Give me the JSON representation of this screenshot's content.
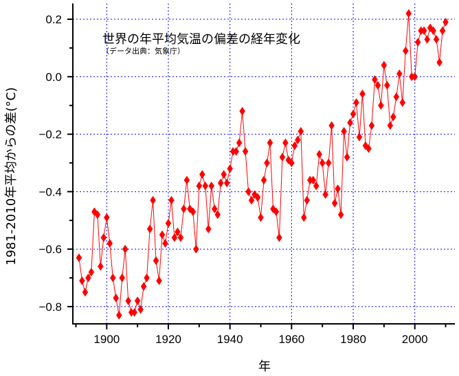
{
  "chart_data": {
    "type": "line",
    "title": "世界の年平均気温の偏差の経年変化",
    "subtitle": "（データ出典：気象庁）",
    "xlabel": "年",
    "ylabel": "1981-2010年平均からの差(°C)",
    "xlim": [
      1889,
      2013
    ],
    "ylim": [
      -0.86,
      0.255
    ],
    "x_ticks": [
      1900,
      1920,
      1940,
      1960,
      1980,
      2000
    ],
    "x_tick_labels": [
      "1900",
      "1920",
      "1940",
      "1960",
      "1980",
      "2000"
    ],
    "y_ticks": [
      -0.8,
      -0.6,
      -0.4,
      -0.2,
      0.0,
      0.2
    ],
    "y_tick_labels": [
      "−0.8",
      "−0.6",
      "−0.4",
      "−0.2",
      "0.0",
      "0.2"
    ],
    "grid": true,
    "color": "#ff0000",
    "marker": "diamond",
    "x": [
      1891,
      1892,
      1893,
      1894,
      1895,
      1896,
      1897,
      1898,
      1899,
      1900,
      1901,
      1902,
      1903,
      1904,
      1905,
      1906,
      1907,
      1908,
      1909,
      1910,
      1911,
      1912,
      1913,
      1914,
      1915,
      1916,
      1917,
      1918,
      1919,
      1920,
      1921,
      1922,
      1923,
      1924,
      1925,
      1926,
      1927,
      1928,
      1929,
      1930,
      1931,
      1932,
      1933,
      1934,
      1935,
      1936,
      1937,
      1938,
      1939,
      1940,
      1941,
      1942,
      1943,
      1944,
      1945,
      1946,
      1947,
      1948,
      1949,
      1950,
      1951,
      1952,
      1953,
      1954,
      1955,
      1956,
      1957,
      1958,
      1959,
      1960,
      1961,
      1962,
      1963,
      1964,
      1965,
      1966,
      1967,
      1968,
      1969,
      1970,
      1971,
      1972,
      1973,
      1974,
      1975,
      1976,
      1977,
      1978,
      1979,
      1980,
      1981,
      1982,
      1983,
      1984,
      1985,
      1986,
      1987,
      1988,
      1989,
      1990,
      1991,
      1992,
      1993,
      1994,
      1995,
      1996,
      1997,
      1998,
      1999,
      2000,
      2001,
      2002,
      2003,
      2004,
      2005,
      2006,
      2007,
      2008,
      2009,
      2010
    ],
    "values": [
      -0.63,
      -0.71,
      -0.75,
      -0.7,
      -0.68,
      -0.47,
      -0.48,
      -0.66,
      -0.56,
      -0.49,
      -0.58,
      -0.7,
      -0.77,
      -0.83,
      -0.7,
      -0.6,
      -0.78,
      -0.82,
      -0.82,
      -0.78,
      -0.81,
      -0.73,
      -0.7,
      -0.53,
      -0.43,
      -0.64,
      -0.71,
      -0.55,
      -0.58,
      -0.51,
      -0.43,
      -0.56,
      -0.54,
      -0.56,
      -0.46,
      -0.36,
      -0.46,
      -0.47,
      -0.6,
      -0.38,
      -0.34,
      -0.38,
      -0.53,
      -0.38,
      -0.46,
      -0.48,
      -0.37,
      -0.34,
      -0.37,
      -0.32,
      -0.26,
      -0.26,
      -0.23,
      -0.12,
      -0.26,
      -0.4,
      -0.43,
      -0.41,
      -0.42,
      -0.49,
      -0.36,
      -0.3,
      -0.23,
      -0.46,
      -0.47,
      -0.56,
      -0.28,
      -0.23,
      -0.29,
      -0.3,
      -0.24,
      -0.22,
      -0.19,
      -0.49,
      -0.43,
      -0.36,
      -0.36,
      -0.38,
      -0.27,
      -0.3,
      -0.41,
      -0.3,
      -0.17,
      -0.44,
      -0.39,
      -0.48,
      -0.19,
      -0.28,
      -0.16,
      -0.13,
      -0.09,
      -0.21,
      -0.06,
      -0.24,
      -0.25,
      -0.17,
      -0.01,
      -0.03,
      -0.1,
      0.04,
      -0.03,
      -0.17,
      -0.14,
      -0.07,
      0.01,
      -0.09,
      0.09,
      0.22,
      0.0,
      0.0,
      0.12,
      0.16,
      0.16,
      0.13,
      0.17,
      0.16,
      0.13,
      0.05,
      0.16,
      0.19
    ]
  }
}
